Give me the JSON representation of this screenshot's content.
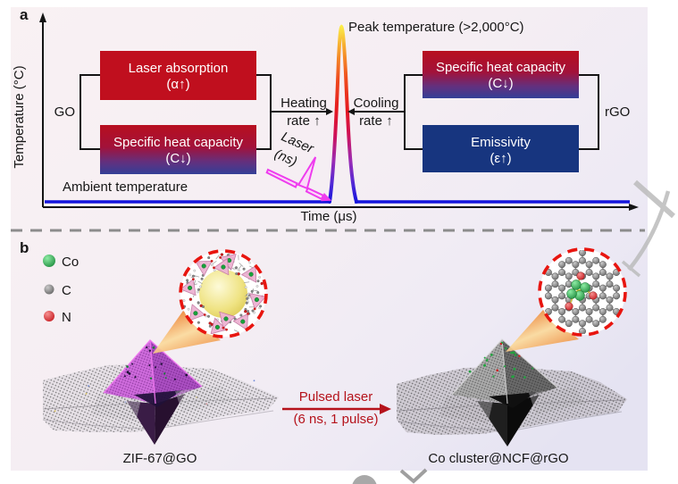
{
  "figure": {
    "panel_a": {
      "label": "a",
      "y_axis_label": "Temperature (°C)",
      "x_axis_label": "Time (μs)",
      "peak_label": "Peak temperature (>2,000°C)",
      "ambient_label": "Ambient temperature",
      "left_group_label": "GO",
      "right_group_label": "rGO",
      "heating": {
        "line1": "Heating",
        "word": "rate",
        "arrow": "↑"
      },
      "cooling": {
        "line1": "Cooling",
        "word": "rate",
        "arrow": "↑"
      },
      "laser": {
        "line1": "Laser",
        "line2": "(ns)"
      },
      "boxes": {
        "laser_absorption": {
          "line1": "Laser absorption",
          "line2": "(α↑)"
        },
        "specific_heat_go": {
          "line1": "Specific heat capacity",
          "line2": "(C↓)"
        },
        "specific_heat_rgo": {
          "line1": "Specific heat capacity",
          "line2": "(C↓)"
        },
        "emissivity": {
          "line1": "Emissivity",
          "line2": "(ε↑)"
        }
      }
    },
    "panel_b": {
      "label": "b",
      "legend": [
        {
          "symbol": "Co",
          "color": "#18a23b"
        },
        {
          "symbol": "C",
          "color": "#8b8b8b"
        },
        {
          "symbol": "N",
          "color": "#e0161c"
        }
      ],
      "process_arrow": {
        "line1": "Pulsed laser",
        "line2": "(6 ns, 1 pulse)"
      },
      "left_structure_label": "ZIF-67@GO",
      "right_structure_label": "Co cluster@NCF@rGO"
    },
    "colors": {
      "box_red": "#c00f1e",
      "box_blue": "#17357f",
      "ambient_blue": "#1515dc",
      "laser_magenta": "#ee3cee",
      "process_red": "#b5121b",
      "inset_border_red": "#e8150f",
      "beam_orange": "#f49b3d",
      "octa_purple": "#cf6cdd",
      "rate_arrow_teal": "#0f8178"
    }
  }
}
